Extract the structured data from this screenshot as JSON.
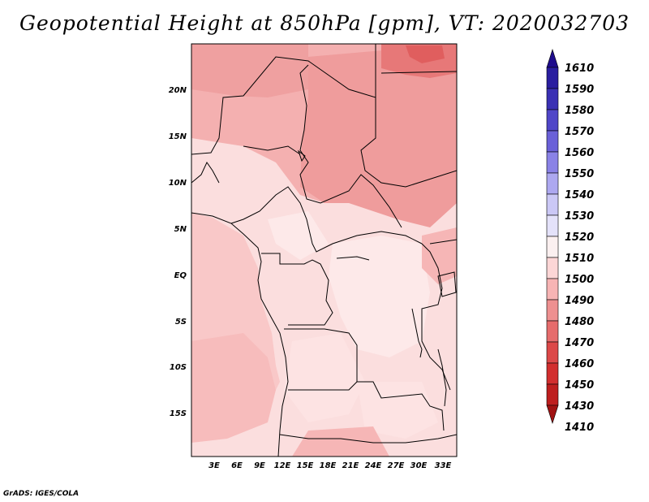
{
  "title": "Geopotential Height at 850hPa [gpm], VT: 2020032703",
  "credit": "GrADS: IGES/COLA",
  "map": {
    "lon_range": [
      0,
      35
    ],
    "lat_range": [
      -19,
      24.5
    ],
    "lat_ticks": [
      "20N",
      "15N",
      "10N",
      "5N",
      "EQ",
      "5S",
      "10S",
      "15S"
    ],
    "lat_values": [
      20,
      15,
      10,
      5,
      0,
      -5,
      -10,
      -15
    ],
    "lon_ticks": [
      "3E",
      "6E",
      "9E",
      "12E",
      "15E",
      "18E",
      "21E",
      "24E",
      "27E",
      "30E",
      "33E"
    ],
    "lon_values": [
      3,
      6,
      9,
      12,
      15,
      18,
      21,
      24,
      27,
      30,
      33
    ]
  },
  "colorbar": {
    "levels": [
      "1610",
      "1590",
      "1580",
      "1570",
      "1560",
      "1550",
      "1540",
      "1530",
      "1520",
      "1510",
      "1500",
      "1490",
      "1480",
      "1470",
      "1460",
      "1450",
      "1430",
      "1410"
    ],
    "colors": [
      "#1e0c8c",
      "#2a1ea0",
      "#3a30b4",
      "#5046c8",
      "#6a60d8",
      "#8a82e6",
      "#ada8f0",
      "#cbc8f6",
      "#e4e2fa",
      "#fbf0f0",
      "#fcd6d6",
      "#f7b4b4",
      "#ee9090",
      "#e66c6c",
      "#dc4848",
      "#d22e2e",
      "#be1e1e",
      "#a01212"
    ]
  }
}
